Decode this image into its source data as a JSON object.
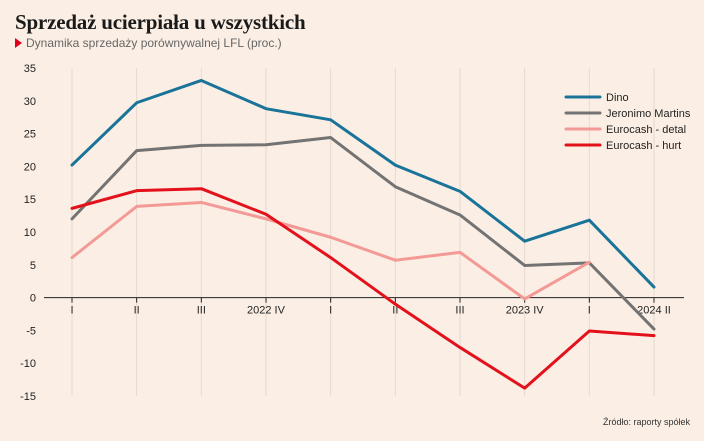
{
  "title": "Sprzedaż ucierpiała u wszystkich",
  "subtitle": "Dynamika sprzedaży porównywalnej LFL (proc.)",
  "source": "Źródło: raporty spółek",
  "chart_data": {
    "type": "line",
    "title": "Sprzedaż ucierpiała u wszystkich",
    "subtitle": "Dynamika sprzedaży porównywalnej LFL (proc.)",
    "categories": [
      "I",
      "II",
      "III",
      "2022 IV",
      "I",
      "II",
      "III",
      "2023 IV",
      "I",
      "2024 II"
    ],
    "y_ticks": [
      35,
      30,
      25,
      20,
      15,
      10,
      5,
      0,
      -5,
      -10,
      -15
    ],
    "ylim": [
      -15,
      35
    ],
    "grid": "vertical",
    "legend_position": "top-right",
    "series": [
      {
        "name": "Dino",
        "color": "#1a7499",
        "values": [
          20.2,
          29.7,
          33.1,
          28.8,
          27.1,
          20.2,
          16.2,
          8.6,
          11.8,
          1.6
        ]
      },
      {
        "name": "Jeronimo Martins",
        "color": "#737373",
        "values": [
          12.0,
          22.4,
          23.2,
          23.3,
          24.4,
          16.9,
          12.6,
          4.9,
          5.3,
          -4.8
        ]
      },
      {
        "name": "Eurocash - detal",
        "color": "#f49a96",
        "values": [
          6.1,
          13.9,
          14.5,
          12.0,
          9.2,
          5.7,
          6.9,
          -0.2,
          5.4,
          null
        ]
      },
      {
        "name": "Eurocash - hurt",
        "color": "#e3111c",
        "values": [
          13.6,
          16.3,
          16.6,
          12.7,
          6.1,
          -1.0,
          -7.6,
          -13.8,
          -5.1,
          -5.8
        ]
      }
    ]
  }
}
